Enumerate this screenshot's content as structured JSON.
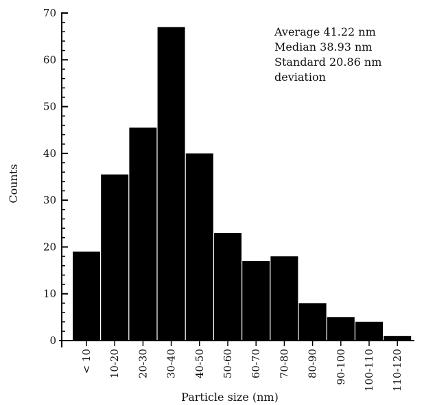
{
  "chart_data": {
    "type": "bar",
    "xlabel": "Particle size (nm)",
    "ylabel": "Counts",
    "ylim": [
      0,
      70
    ],
    "yticks": [
      "0",
      "10",
      "20",
      "30",
      "40",
      "50",
      "60",
      "70"
    ],
    "categories": [
      "< 10",
      "10-20",
      "20-30",
      "30-40",
      "40-50",
      "50-60",
      "60-70",
      "70-80",
      "80-90",
      "90-100",
      "100-110",
      "110-120"
    ],
    "values": [
      19,
      35.5,
      45.5,
      67,
      40,
      23,
      17,
      18,
      8,
      5,
      4,
      1
    ],
    "bar_color": "#000000",
    "grid": false,
    "annotation": [
      "Average 41.22 nm",
      "Median 38.93 nm",
      "Standard 20.86 nm",
      "deviation"
    ]
  }
}
